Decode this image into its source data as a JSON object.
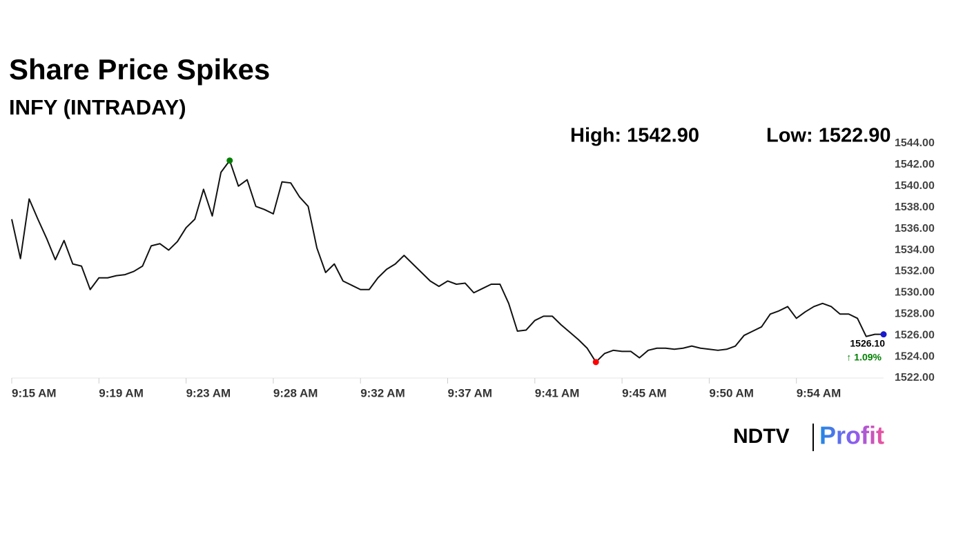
{
  "chart_data": {
    "type": "line",
    "title": "Share Price Spikes",
    "subtitle": "INFY (INTRADAY)",
    "high_text": "High: 1542.90",
    "low_text": "Low: 1522.90",
    "last_price": "1526.10",
    "change": "↑ 1.09%",
    "logo": {
      "left": "NDTV",
      "right": "Profit"
    },
    "categories": [
      "9:15 AM",
      null,
      null,
      null,
      null,
      null,
      null,
      null,
      null,
      null,
      "9:19 AM",
      null,
      null,
      null,
      null,
      null,
      null,
      null,
      null,
      null,
      "9:23 AM",
      null,
      null,
      null,
      null,
      null,
      null,
      null,
      null,
      null,
      "9:28 AM",
      null,
      null,
      null,
      null,
      null,
      null,
      null,
      null,
      null,
      "9:32 AM",
      null,
      null,
      null,
      null,
      null,
      null,
      null,
      null,
      null,
      "9:37 AM",
      null,
      null,
      null,
      null,
      null,
      null,
      null,
      null,
      null,
      "9:41 AM",
      null,
      null,
      null,
      null,
      null,
      null,
      null,
      null,
      null,
      "9:45 AM",
      null,
      null,
      null,
      null,
      null,
      null,
      null,
      null,
      null,
      "9:50 AM",
      null,
      null,
      null,
      null,
      null,
      null,
      null,
      null,
      null,
      "9:54 AM",
      null,
      null,
      null,
      null,
      null,
      null,
      null,
      null,
      null,
      null
    ],
    "series": [
      {
        "color": "#111111",
        "values": [
          1536.9,
          1533.2,
          1538.8,
          1536.9,
          1535.1,
          1533.1,
          1534.9,
          1532.7,
          1532.5,
          1530.3,
          1531.4,
          1531.4,
          1531.6,
          1531.7,
          1532.0,
          1532.5,
          1534.4,
          1534.6,
          1534.0,
          1534.8,
          1536.1,
          1536.9,
          1539.7,
          1537.2,
          1541.3,
          1542.4,
          1540.0,
          1540.6,
          1538.1,
          1537.8,
          1537.4,
          1540.4,
          1540.3,
          1539.0,
          1538.1,
          1534.2,
          1531.9,
          1532.7,
          1531.1,
          1530.7,
          1530.3,
          1530.3,
          1531.4,
          1532.2,
          1532.7,
          1533.5,
          1532.7,
          1531.9,
          1531.1,
          1530.6,
          1531.1,
          1530.8,
          1530.9,
          1530.0,
          1530.4,
          1530.8,
          1530.8,
          1529.0,
          1526.4,
          1526.5,
          1527.4,
          1527.8,
          1527.8,
          1527.0,
          1526.3,
          1525.6,
          1524.8,
          1523.5,
          1524.3,
          1524.6,
          1524.5,
          1524.5,
          1523.9,
          1524.6,
          1524.8,
          1524.8,
          1524.7,
          1524.8,
          1525.0,
          1524.8,
          1524.7,
          1524.6,
          1524.7,
          1525.0,
          1526.0,
          1526.4,
          1526.8,
          1528.0,
          1528.3,
          1528.7,
          1527.6,
          1528.2,
          1528.7,
          1529.0,
          1528.7,
          1528.0,
          1528.0,
          1527.6,
          1525.9,
          1526.1,
          1526.1
        ]
      }
    ],
    "high_color": "#008000",
    "low_color": "#ff0000",
    "last_color": "#1a1acc",
    "change_color": "#008000",
    "ylim": [
      1522,
      1544
    ],
    "yticks": [
      {
        "value": 1522,
        "label": "1522.00"
      },
      {
        "value": 1524,
        "label": "1524.00"
      },
      {
        "value": 1526,
        "label": "1526.00"
      },
      {
        "value": 1528,
        "label": "1528.00"
      },
      {
        "value": 1530,
        "label": "1530.00"
      },
      {
        "value": 1532,
        "label": "1532.00"
      },
      {
        "value": 1534,
        "label": "1534.00"
      },
      {
        "value": 1536,
        "label": "1536.00"
      },
      {
        "value": 1538,
        "label": "1538.00"
      },
      {
        "value": 1540,
        "label": "1540.00"
      },
      {
        "value": 1542,
        "label": "1542.00"
      },
      {
        "value": 1544,
        "label": "1544.00"
      }
    ],
    "grid": false
  }
}
